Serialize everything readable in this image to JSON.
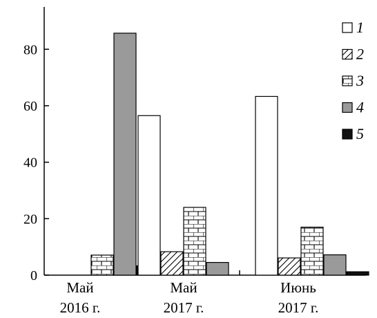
{
  "chart_data": {
    "type": "bar",
    "categories": [
      {
        "line1": "Май",
        "line2": "2016 г."
      },
      {
        "line1": "Май",
        "line2": "2017 г."
      },
      {
        "line1": "Июнь",
        "line2": "2017 г."
      }
    ],
    "series": [
      {
        "name": "1",
        "pattern": "empty",
        "values": [
          0,
          56.5,
          63.3
        ]
      },
      {
        "name": "2",
        "pattern": "hatch",
        "values": [
          0,
          8.3,
          6.1
        ]
      },
      {
        "name": "3",
        "pattern": "brick",
        "values": [
          7.1,
          24.0,
          17.0
        ]
      },
      {
        "name": "4",
        "pattern": "gray",
        "values": [
          85.7,
          4.5,
          7.2
        ]
      },
      {
        "name": "5",
        "pattern": "black",
        "values": [
          3.3,
          0,
          1.2
        ]
      }
    ],
    "yticks": [
      0,
      20,
      40,
      60,
      80
    ],
    "ylim": [
      0,
      95
    ],
    "xlabel": "",
    "ylabel": "",
    "title": "",
    "legend_position": "top-right",
    "colors": {
      "gray": "#9a9a9a",
      "black": "#111111",
      "stroke": "#000000",
      "fill": "#ffffff"
    }
  }
}
